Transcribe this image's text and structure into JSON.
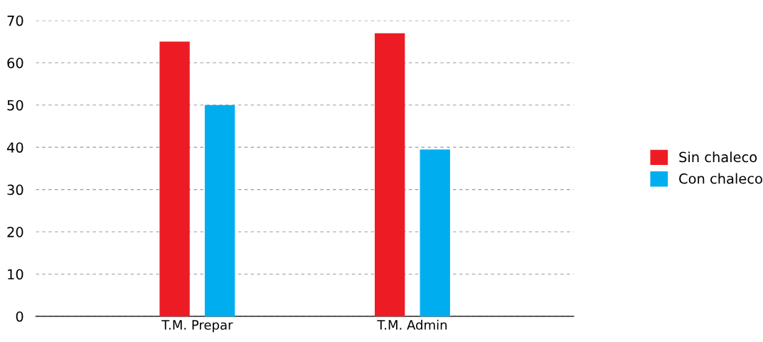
{
  "chart_data": {
    "type": "bar",
    "categories": [
      "T.M. Prepar",
      "T.M. Admin"
    ],
    "series": [
      {
        "name": "Sin chaleco",
        "color": "#ed1c24",
        "values": [
          65,
          67
        ]
      },
      {
        "name": "Con chaleco",
        "color": "#00aeef",
        "values": [
          50,
          39.5
        ]
      }
    ],
    "ylim": [
      0,
      70
    ],
    "yticks": [
      0,
      10,
      20,
      30,
      40,
      50,
      60,
      70
    ],
    "grid": "y",
    "legend": "right"
  }
}
